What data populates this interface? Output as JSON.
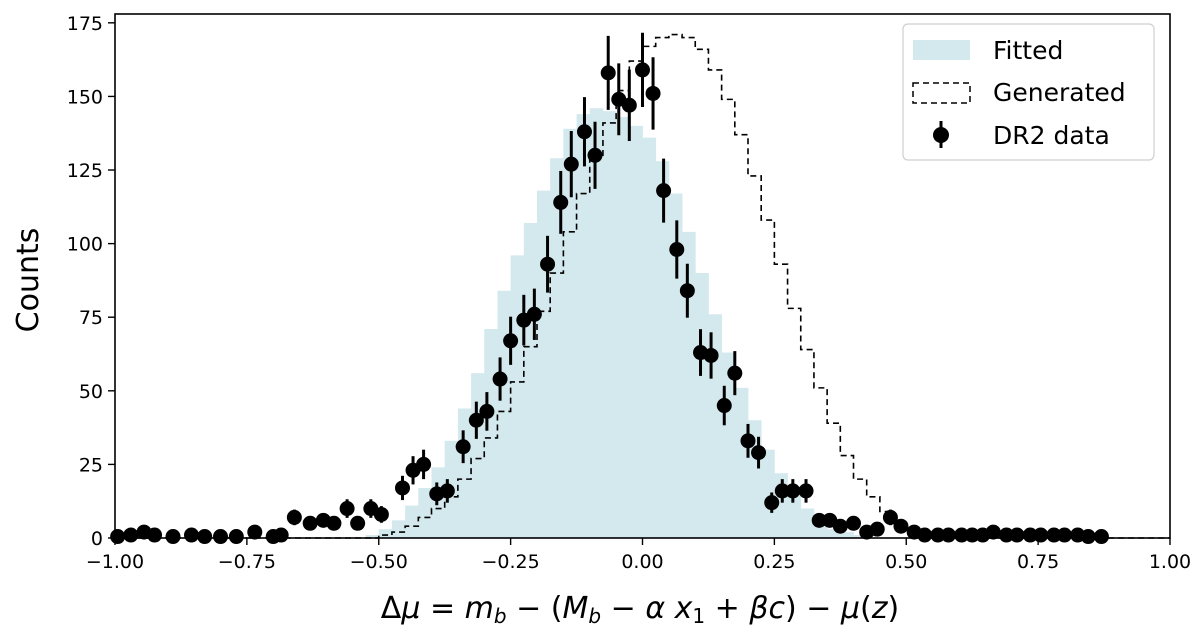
{
  "chart_data": {
    "type": "bar",
    "ylabel": "Counts",
    "xlabel": "Δμ = m_b − (M_b − α x₁ + βc) − μ(z)",
    "xlim": [
      -1.0,
      1.0
    ],
    "ylim": [
      0,
      178
    ],
    "grid": false,
    "legend_placement": "top-right",
    "xticks": [
      {
        "value": -1.0,
        "label": "−1.00"
      },
      {
        "value": -0.75,
        "label": "−0.75"
      },
      {
        "value": -0.5,
        "label": "−0.50"
      },
      {
        "value": -0.25,
        "label": "−0.25"
      },
      {
        "value": 0.0,
        "label": "0.00"
      },
      {
        "value": 0.25,
        "label": "0.25"
      },
      {
        "value": 0.5,
        "label": "0.50"
      },
      {
        "value": 0.75,
        "label": "0.75"
      },
      {
        "value": 1.0,
        "label": "1.00"
      }
    ],
    "yticks": [
      {
        "value": 0,
        "label": "0"
      },
      {
        "value": 25,
        "label": "25"
      },
      {
        "value": 50,
        "label": "50"
      },
      {
        "value": 75,
        "label": "75"
      },
      {
        "value": 100,
        "label": "100"
      },
      {
        "value": 125,
        "label": "125"
      },
      {
        "value": 150,
        "label": "150"
      },
      {
        "value": 175,
        "label": "175"
      }
    ],
    "bin_edges": [
      -1.0,
      -0.975,
      -0.95,
      -0.925,
      -0.9,
      -0.875,
      -0.85,
      -0.825,
      -0.8,
      -0.775,
      -0.75,
      -0.725,
      -0.7,
      -0.675,
      -0.65,
      -0.625,
      -0.6,
      -0.575,
      -0.55,
      -0.525,
      -0.5,
      -0.475,
      -0.45,
      -0.425,
      -0.4,
      -0.375,
      -0.35,
      -0.325,
      -0.3,
      -0.275,
      -0.25,
      -0.225,
      -0.2,
      -0.175,
      -0.15,
      -0.125,
      -0.1,
      -0.075,
      -0.05,
      -0.025,
      0.0,
      0.025,
      0.05,
      0.075,
      0.1,
      0.125,
      0.15,
      0.175,
      0.2,
      0.225,
      0.25,
      0.275,
      0.3,
      0.325,
      0.35,
      0.375,
      0.4,
      0.425,
      0.45,
      0.475,
      0.5,
      0.525,
      0.55,
      0.575,
      0.6,
      0.625,
      0.65,
      0.675,
      0.7,
      0.725,
      0.75,
      0.775,
      0.8,
      0.825,
      0.85,
      0.875,
      0.9,
      0.925,
      0.95,
      0.975,
      1.0
    ],
    "series": [
      {
        "name": "Fitted",
        "kind": "filled-histogram",
        "color": "#d4e9ee",
        "values": [
          0,
          0,
          0,
          0,
          0,
          0,
          0,
          0,
          0,
          0,
          0,
          0,
          0,
          0,
          0,
          0,
          0,
          0,
          0,
          1,
          3,
          6,
          11,
          17,
          24,
          33,
          44,
          56,
          71,
          84,
          96,
          107,
          118,
          129,
          139,
          144,
          146,
          145,
          143,
          140,
          136,
          128,
          117,
          104,
          90,
          76,
          63,
          51,
          40,
          30,
          22,
          15,
          10,
          6,
          3,
          2,
          1,
          0,
          0,
          0,
          0,
          0,
          0,
          0,
          0,
          0,
          0,
          0,
          0,
          0,
          0,
          0,
          0,
          0,
          0,
          0,
          0,
          0,
          0,
          0
        ]
      },
      {
        "name": "Generated",
        "kind": "step-histogram",
        "color": "#000000",
        "values": [
          0,
          0,
          0,
          0,
          0,
          0,
          0,
          0,
          0,
          0,
          0,
          0,
          0,
          0,
          0,
          0,
          0,
          0,
          0,
          0,
          1,
          2,
          4,
          7,
          10,
          14,
          20,
          27,
          34,
          43,
          53,
          65,
          77,
          90,
          104,
          117,
          129,
          141,
          152,
          162,
          167,
          170,
          171,
          170,
          166,
          159,
          149,
          137,
          123,
          108,
          93,
          78,
          64,
          51,
          39,
          28,
          20,
          14,
          9,
          5,
          3,
          2,
          1,
          0,
          0,
          0,
          0,
          0,
          0,
          0,
          0,
          0,
          0,
          0,
          0,
          0,
          0,
          0,
          0,
          0
        ]
      },
      {
        "name": "DR2 data",
        "kind": "points-with-errorbars",
        "color": "#000000",
        "points": [
          {
            "x": -0.995,
            "y": 0.5
          },
          {
            "x": -0.97,
            "y": 1
          },
          {
            "x": -0.945,
            "y": 2
          },
          {
            "x": -0.925,
            "y": 1
          },
          {
            "x": -0.89,
            "y": 0.5
          },
          {
            "x": -0.855,
            "y": 1
          },
          {
            "x": -0.83,
            "y": 0.5
          },
          {
            "x": -0.8,
            "y": 0.5
          },
          {
            "x": -0.77,
            "y": 0.5
          },
          {
            "x": -0.735,
            "y": 2
          },
          {
            "x": -0.7,
            "y": 0.5
          },
          {
            "x": -0.685,
            "y": 1
          },
          {
            "x": -0.66,
            "y": 7
          },
          {
            "x": -0.63,
            "y": 5
          },
          {
            "x": -0.605,
            "y": 6
          },
          {
            "x": -0.585,
            "y": 5
          },
          {
            "x": -0.56,
            "y": 10
          },
          {
            "x": -0.54,
            "y": 5
          },
          {
            "x": -0.515,
            "y": 10
          },
          {
            "x": -0.495,
            "y": 8
          },
          {
            "x": -0.455,
            "y": 17
          },
          {
            "x": -0.435,
            "y": 23
          },
          {
            "x": -0.415,
            "y": 25
          },
          {
            "x": -0.39,
            "y": 15
          },
          {
            "x": -0.37,
            "y": 16
          },
          {
            "x": -0.34,
            "y": 31
          },
          {
            "x": -0.315,
            "y": 40
          },
          {
            "x": -0.295,
            "y": 43
          },
          {
            "x": -0.27,
            "y": 54
          },
          {
            "x": -0.25,
            "y": 67
          },
          {
            "x": -0.225,
            "y": 74
          },
          {
            "x": -0.205,
            "y": 76
          },
          {
            "x": -0.18,
            "y": 93
          },
          {
            "x": -0.155,
            "y": 114
          },
          {
            "x": -0.135,
            "y": 127
          },
          {
            "x": -0.11,
            "y": 138
          },
          {
            "x": -0.09,
            "y": 130
          },
          {
            "x": -0.065,
            "y": 158
          },
          {
            "x": -0.045,
            "y": 149
          },
          {
            "x": -0.025,
            "y": 147
          },
          {
            "x": 0.0,
            "y": 159
          },
          {
            "x": 0.02,
            "y": 151
          },
          {
            "x": 0.04,
            "y": 118
          },
          {
            "x": 0.065,
            "y": 98
          },
          {
            "x": 0.085,
            "y": 84
          },
          {
            "x": 0.11,
            "y": 63
          },
          {
            "x": 0.13,
            "y": 62
          },
          {
            "x": 0.155,
            "y": 45
          },
          {
            "x": 0.175,
            "y": 56
          },
          {
            "x": 0.2,
            "y": 33
          },
          {
            "x": 0.22,
            "y": 29
          },
          {
            "x": 0.245,
            "y": 12
          },
          {
            "x": 0.265,
            "y": 16
          },
          {
            "x": 0.285,
            "y": 16
          },
          {
            "x": 0.31,
            "y": 16
          },
          {
            "x": 0.335,
            "y": 6
          },
          {
            "x": 0.355,
            "y": 6
          },
          {
            "x": 0.375,
            "y": 4
          },
          {
            "x": 0.4,
            "y": 5
          },
          {
            "x": 0.425,
            "y": 2
          },
          {
            "x": 0.445,
            "y": 3
          },
          {
            "x": 0.47,
            "y": 7
          },
          {
            "x": 0.49,
            "y": 4
          },
          {
            "x": 0.515,
            "y": 2
          },
          {
            "x": 0.535,
            "y": 1
          },
          {
            "x": 0.56,
            "y": 1
          },
          {
            "x": 0.58,
            "y": 1
          },
          {
            "x": 0.605,
            "y": 1
          },
          {
            "x": 0.625,
            "y": 1
          },
          {
            "x": 0.645,
            "y": 1
          },
          {
            "x": 0.665,
            "y": 2
          },
          {
            "x": 0.69,
            "y": 1
          },
          {
            "x": 0.71,
            "y": 1
          },
          {
            "x": 0.735,
            "y": 1
          },
          {
            "x": 0.755,
            "y": 1
          },
          {
            "x": 0.78,
            "y": 1
          },
          {
            "x": 0.8,
            "y": 1
          },
          {
            "x": 0.825,
            "y": 1
          },
          {
            "x": 0.845,
            "y": 0.5
          },
          {
            "x": 0.87,
            "y": 0.5
          }
        ]
      }
    ]
  }
}
